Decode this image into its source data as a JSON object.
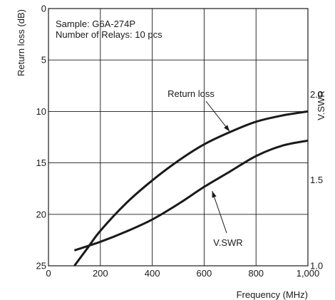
{
  "chart_data": {
    "type": "line",
    "title": "",
    "xlabel": "Frequency (MHz)",
    "ylabel_left": "Return loss (dB)",
    "ylabel_right": "V.SWR",
    "xlim": [
      0,
      1000
    ],
    "ylim_left": [
      0,
      25
    ],
    "ylim_left_inverted": true,
    "ylim_right": [
      1.0,
      2.5
    ],
    "grid": true,
    "x_ticks": [
      {
        "value": 0,
        "label": "0"
      },
      {
        "value": 200,
        "label": "200"
      },
      {
        "value": 400,
        "label": "400"
      },
      {
        "value": 600,
        "label": "600"
      },
      {
        "value": 800,
        "label": "800"
      },
      {
        "value": 1000,
        "label": "1,000"
      }
    ],
    "y_left_ticks": [
      {
        "value": 0,
        "label": "0"
      },
      {
        "value": 5,
        "label": "5"
      },
      {
        "value": 10,
        "label": "10"
      },
      {
        "value": 15,
        "label": "15"
      },
      {
        "value": 20,
        "label": "20"
      },
      {
        "value": 25,
        "label": "25"
      }
    ],
    "y_right_ticks": [
      {
        "value": 1.0,
        "label": "1.0"
      },
      {
        "value": 1.5,
        "label": "1.5"
      },
      {
        "value": 2.0,
        "label": "2.0"
      }
    ],
    "info_lines": [
      "Sample: G6A-274P",
      "Number of Relays: 10 pcs"
    ],
    "series": [
      {
        "name": "Return loss",
        "axis": "left",
        "x": [
          100,
          150,
          200,
          300,
          400,
          500,
          600,
          700,
          800,
          900,
          1000
        ],
        "values": [
          25.0,
          23.3,
          21.6,
          18.9,
          16.7,
          14.8,
          13.2,
          12.0,
          11.0,
          10.4,
          10.0
        ]
      },
      {
        "name": "V.SWR",
        "axis": "right",
        "x": [
          100,
          200,
          300,
          400,
          500,
          600,
          700,
          800,
          900,
          1000
        ],
        "values": [
          1.09,
          1.14,
          1.2,
          1.27,
          1.36,
          1.46,
          1.55,
          1.64,
          1.7,
          1.73
        ]
      }
    ],
    "annotations": [
      {
        "text": "Return loss",
        "series": "Return loss",
        "x": 700,
        "y": 12.0
      },
      {
        "text": "V.SWR",
        "series": "V.SWR",
        "x": 630,
        "y": 1.44
      }
    ]
  }
}
